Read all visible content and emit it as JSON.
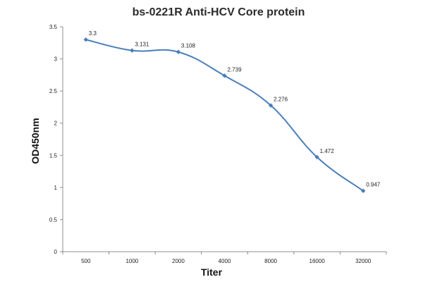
{
  "chart_data": {
    "type": "line",
    "title": "bs-0221R Anti-HCV Core protein",
    "xlabel": "Titer",
    "ylabel": "OD450nm",
    "categories": [
      "500",
      "1000",
      "2000",
      "4000",
      "8000",
      "16000",
      "32000"
    ],
    "series": [
      {
        "values": [
          3.3,
          3.131,
          3.108,
          2.739,
          2.276,
          1.472,
          0.947
        ],
        "labels": [
          "3.3",
          "3.131",
          "3.108",
          "2.739",
          "2.276",
          "1.472",
          "0.947"
        ],
        "color": "#4a7ebb",
        "marker": "diamond",
        "smooth": true
      }
    ],
    "ylim": [
      0,
      3.5
    ],
    "yticks": [
      "0",
      "0.5",
      "1",
      "1.5",
      "2",
      "2.5",
      "3",
      "3.5"
    ],
    "grid": false,
    "legend": "none"
  }
}
